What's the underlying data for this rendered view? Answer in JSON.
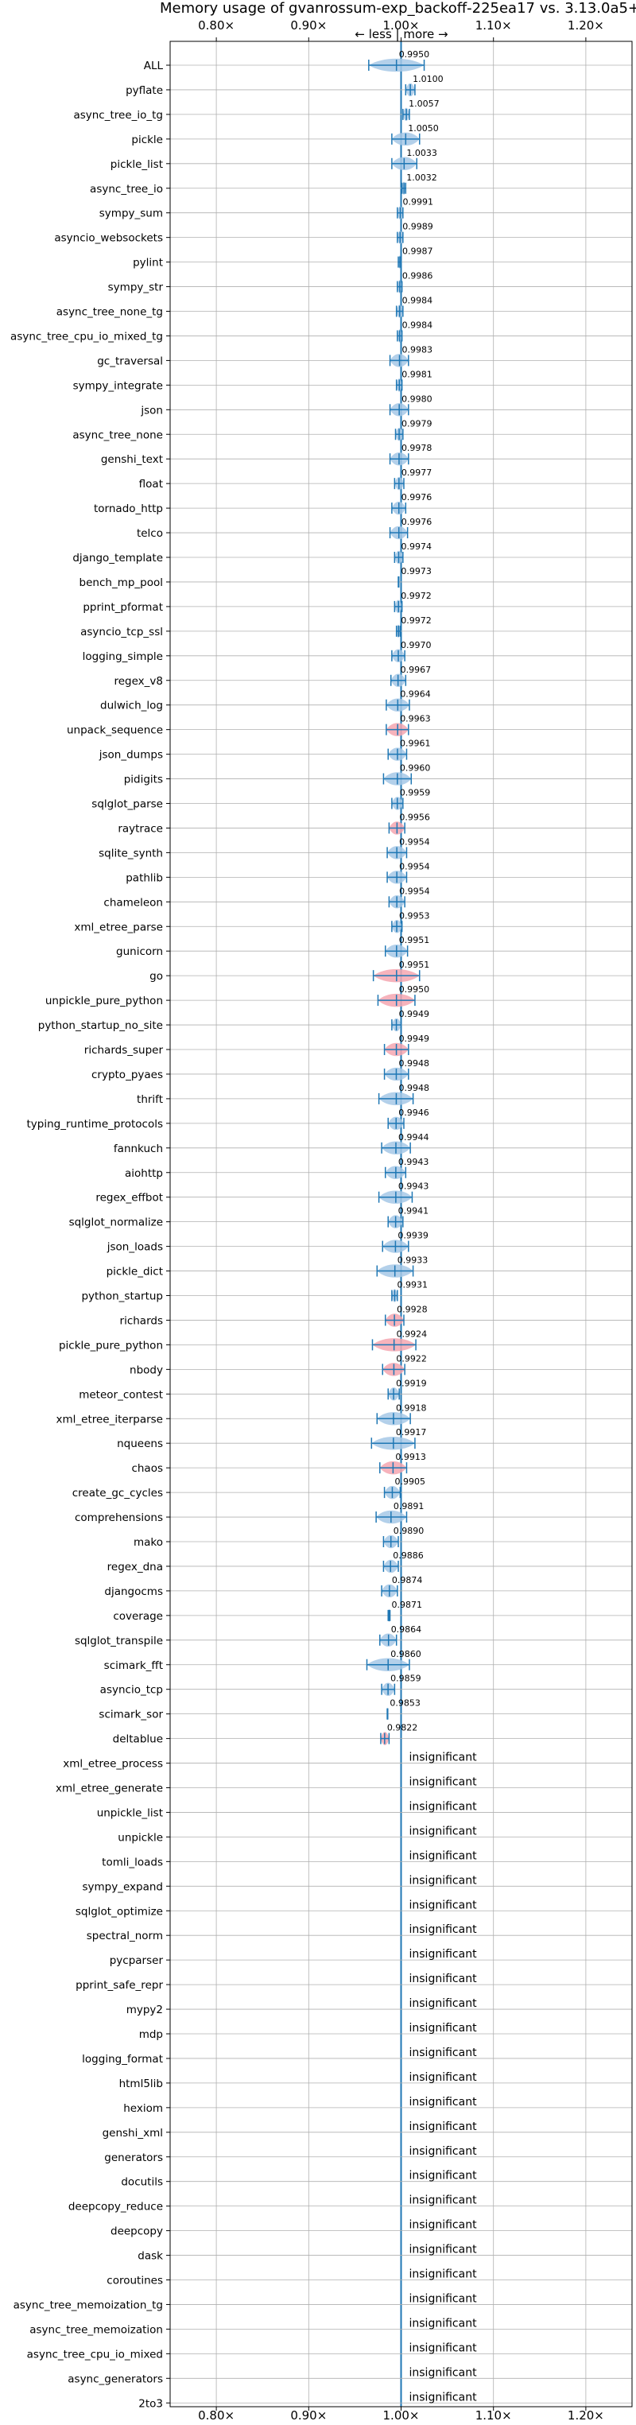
{
  "chart_data": {
    "type": "scatter",
    "title": "Memory usage of gvanrossum-exp_backoff-225ea17 vs. 3.13.0a5+",
    "direction_label": "← less  |  more →",
    "xlim": [
      0.75,
      1.25
    ],
    "xticks": [
      0.8,
      0.9,
      1.0,
      1.1,
      1.2
    ],
    "xtick_labels": [
      "0.80×",
      "0.90×",
      "1.00×",
      "1.10×",
      "1.20×"
    ],
    "reference_x": 1.0,
    "grid": true,
    "colors": {
      "line": "#1f77b4",
      "neutral_fill": "#a6c8e6",
      "worse_fill": "#f4a6b0",
      "grid": "#b0b0b0"
    },
    "insignificant_text": "insignificant",
    "benchmarks": [
      {
        "name": "ALL",
        "value": 0.995,
        "label": "0.9950",
        "low": 0.965,
        "high": 1.025
      },
      {
        "name": "pyflate",
        "value": 1.01,
        "label": "1.0100",
        "low": 1.005,
        "high": 1.015
      },
      {
        "name": "async_tree_io_tg",
        "value": 1.0057,
        "label": "1.0057",
        "low": 1.002,
        "high": 1.009
      },
      {
        "name": "pickle",
        "value": 1.005,
        "label": "1.0050",
        "low": 0.99,
        "high": 1.02
      },
      {
        "name": "pickle_list",
        "value": 1.0033,
        "label": "1.0033",
        "low": 0.99,
        "high": 1.017
      },
      {
        "name": "async_tree_io",
        "value": 1.0032,
        "label": "1.0032",
        "low": 1.001,
        "high": 1.005
      },
      {
        "name": "sympy_sum",
        "value": 0.9991,
        "label": "0.9991",
        "low": 0.996,
        "high": 1.002
      },
      {
        "name": "asyncio_websockets",
        "value": 0.9989,
        "label": "0.9989",
        "low": 0.996,
        "high": 1.002
      },
      {
        "name": "pylint",
        "value": 0.9987,
        "label": "0.9987",
        "low": 0.997,
        "high": 1.0
      },
      {
        "name": "sympy_str",
        "value": 0.9986,
        "label": "0.9986",
        "low": 0.996,
        "high": 1.001
      },
      {
        "name": "async_tree_none_tg",
        "value": 0.9984,
        "label": "0.9984",
        "low": 0.995,
        "high": 1.002
      },
      {
        "name": "async_tree_cpu_io_mixed_tg",
        "value": 0.9984,
        "label": "0.9984",
        "low": 0.996,
        "high": 1.001
      },
      {
        "name": "gc_traversal",
        "value": 0.9983,
        "label": "0.9983",
        "low": 0.988,
        "high": 1.008
      },
      {
        "name": "sympy_integrate",
        "value": 0.9981,
        "label": "0.9981",
        "low": 0.995,
        "high": 1.001
      },
      {
        "name": "json",
        "value": 0.998,
        "label": "0.9980",
        "low": 0.988,
        "high": 1.008
      },
      {
        "name": "async_tree_none",
        "value": 0.9979,
        "label": "0.9979",
        "low": 0.994,
        "high": 1.002
      },
      {
        "name": "genshi_text",
        "value": 0.9978,
        "label": "0.9978",
        "low": 0.988,
        "high": 1.008
      },
      {
        "name": "float",
        "value": 0.9977,
        "label": "0.9977",
        "low": 0.993,
        "high": 1.003
      },
      {
        "name": "tornado_http",
        "value": 0.9976,
        "label": "0.9976",
        "low": 0.99,
        "high": 1.005
      },
      {
        "name": "telco",
        "value": 0.9976,
        "label": "0.9976",
        "low": 0.988,
        "high": 1.007
      },
      {
        "name": "django_template",
        "value": 0.9974,
        "label": "0.9974",
        "low": 0.993,
        "high": 1.002
      },
      {
        "name": "bench_mp_pool",
        "value": 0.9973,
        "label": "0.9973",
        "low": 0.997,
        "high": 0.9976
      },
      {
        "name": "pprint_pformat",
        "value": 0.9972,
        "label": "0.9972",
        "low": 0.993,
        "high": 1.001
      },
      {
        "name": "asyncio_tcp_ssl",
        "value": 0.9972,
        "label": "0.9972",
        "low": 0.995,
        "high": 0.999
      },
      {
        "name": "logging_simple",
        "value": 0.997,
        "label": "0.9970",
        "low": 0.99,
        "high": 1.004
      },
      {
        "name": "regex_v8",
        "value": 0.9967,
        "label": "0.9967",
        "low": 0.989,
        "high": 1.005
      },
      {
        "name": "dulwich_log",
        "value": 0.9964,
        "label": "0.9964",
        "low": 0.984,
        "high": 1.009
      },
      {
        "name": "unpack_sequence",
        "value": 0.9963,
        "label": "0.9963",
        "low": 0.984,
        "high": 1.008,
        "worse": true
      },
      {
        "name": "json_dumps",
        "value": 0.9961,
        "label": "0.9961",
        "low": 0.986,
        "high": 1.006
      },
      {
        "name": "pidigits",
        "value": 0.996,
        "label": "0.9960",
        "low": 0.981,
        "high": 1.011
      },
      {
        "name": "sqlglot_parse",
        "value": 0.9959,
        "label": "0.9959",
        "low": 0.99,
        "high": 1.002
      },
      {
        "name": "raytrace",
        "value": 0.9956,
        "label": "0.9956",
        "low": 0.987,
        "high": 1.004,
        "worse": true
      },
      {
        "name": "sqlite_synth",
        "value": 0.9954,
        "label": "0.9954",
        "low": 0.985,
        "high": 1.006
      },
      {
        "name": "pathlib",
        "value": 0.9954,
        "label": "0.9954",
        "low": 0.985,
        "high": 1.006
      },
      {
        "name": "chameleon",
        "value": 0.9954,
        "label": "0.9954",
        "low": 0.987,
        "high": 1.004
      },
      {
        "name": "xml_etree_parse",
        "value": 0.9953,
        "label": "0.9953",
        "low": 0.99,
        "high": 1.001
      },
      {
        "name": "gunicorn",
        "value": 0.9951,
        "label": "0.9951",
        "low": 0.983,
        "high": 1.007
      },
      {
        "name": "go",
        "value": 0.9951,
        "label": "0.9951",
        "low": 0.97,
        "high": 1.02,
        "worse": true
      },
      {
        "name": "unpickle_pure_python",
        "value": 0.995,
        "label": "0.9950",
        "low": 0.975,
        "high": 1.015,
        "worse": true
      },
      {
        "name": "python_startup_no_site",
        "value": 0.9949,
        "label": "0.9949",
        "low": 0.99,
        "high": 1.0
      },
      {
        "name": "richards_super",
        "value": 0.9949,
        "label": "0.9949",
        "low": 0.982,
        "high": 1.008,
        "worse": true
      },
      {
        "name": "crypto_pyaes",
        "value": 0.9948,
        "label": "0.9948",
        "low": 0.982,
        "high": 1.008
      },
      {
        "name": "thrift",
        "value": 0.9948,
        "label": "0.9948",
        "low": 0.976,
        "high": 1.013
      },
      {
        "name": "typing_runtime_protocols",
        "value": 0.9946,
        "label": "0.9946",
        "low": 0.986,
        "high": 1.003
      },
      {
        "name": "fannkuch",
        "value": 0.9944,
        "label": "0.9944",
        "low": 0.979,
        "high": 1.01
      },
      {
        "name": "aiohttp",
        "value": 0.9943,
        "label": "0.9943",
        "low": 0.983,
        "high": 1.005
      },
      {
        "name": "regex_effbot",
        "value": 0.9943,
        "label": "0.9943",
        "low": 0.976,
        "high": 1.012
      },
      {
        "name": "sqlglot_normalize",
        "value": 0.9941,
        "label": "0.9941",
        "low": 0.986,
        "high": 1.002
      },
      {
        "name": "json_loads",
        "value": 0.9939,
        "label": "0.9939",
        "low": 0.98,
        "high": 1.008
      },
      {
        "name": "pickle_dict",
        "value": 0.9933,
        "label": "0.9933",
        "low": 0.974,
        "high": 1.013
      },
      {
        "name": "python_startup",
        "value": 0.9931,
        "label": "0.9931",
        "low": 0.99,
        "high": 0.996
      },
      {
        "name": "richards",
        "value": 0.9928,
        "label": "0.9928",
        "low": 0.983,
        "high": 1.003,
        "worse": true
      },
      {
        "name": "pickle_pure_python",
        "value": 0.9924,
        "label": "0.9924",
        "low": 0.969,
        "high": 1.016,
        "worse": true
      },
      {
        "name": "nbody",
        "value": 0.9922,
        "label": "0.9922",
        "low": 0.98,
        "high": 1.004,
        "worse": true
      },
      {
        "name": "meteor_contest",
        "value": 0.9919,
        "label": "0.9919",
        "low": 0.986,
        "high": 0.998
      },
      {
        "name": "xml_etree_iterparse",
        "value": 0.9918,
        "label": "0.9918",
        "low": 0.974,
        "high": 1.01
      },
      {
        "name": "nqueens",
        "value": 0.9917,
        "label": "0.9917",
        "low": 0.968,
        "high": 1.015
      },
      {
        "name": "chaos",
        "value": 0.9913,
        "label": "0.9913",
        "low": 0.977,
        "high": 1.006,
        "worse": true
      },
      {
        "name": "create_gc_cycles",
        "value": 0.9905,
        "label": "0.9905",
        "low": 0.982,
        "high": 0.999
      },
      {
        "name": "comprehensions",
        "value": 0.9891,
        "label": "0.9891",
        "low": 0.973,
        "high": 1.006
      },
      {
        "name": "mako",
        "value": 0.989,
        "label": "0.9890",
        "low": 0.981,
        "high": 0.997
      },
      {
        "name": "regex_dna",
        "value": 0.9886,
        "label": "0.9886",
        "low": 0.981,
        "high": 0.997
      },
      {
        "name": "djangocms",
        "value": 0.9874,
        "label": "0.9874",
        "low": 0.979,
        "high": 0.996
      },
      {
        "name": "coverage",
        "value": 0.9871,
        "label": "0.9871",
        "low": 0.986,
        "high": 0.988
      },
      {
        "name": "sqlglot_transpile",
        "value": 0.9864,
        "label": "0.9864",
        "low": 0.977,
        "high": 0.995
      },
      {
        "name": "scimark_fft",
        "value": 0.986,
        "label": "0.9860",
        "low": 0.963,
        "high": 1.009
      },
      {
        "name": "asyncio_tcp",
        "value": 0.9859,
        "label": "0.9859",
        "low": 0.979,
        "high": 0.993
      },
      {
        "name": "scimark_sor",
        "value": 0.9853,
        "label": "0.9853",
        "low": 0.985,
        "high": 0.9856
      },
      {
        "name": "deltablue",
        "value": 0.9822,
        "label": "0.9822",
        "low": 0.978,
        "high": 0.987,
        "worse": true
      },
      {
        "name": "xml_etree_process",
        "insignificant": true
      },
      {
        "name": "xml_etree_generate",
        "insignificant": true
      },
      {
        "name": "unpickle_list",
        "insignificant": true
      },
      {
        "name": "unpickle",
        "insignificant": true
      },
      {
        "name": "tomli_loads",
        "insignificant": true
      },
      {
        "name": "sympy_expand",
        "insignificant": true
      },
      {
        "name": "sqlglot_optimize",
        "insignificant": true
      },
      {
        "name": "spectral_norm",
        "insignificant": true
      },
      {
        "name": "pycparser",
        "insignificant": true
      },
      {
        "name": "pprint_safe_repr",
        "insignificant": true
      },
      {
        "name": "mypy2",
        "insignificant": true
      },
      {
        "name": "mdp",
        "insignificant": true
      },
      {
        "name": "logging_format",
        "insignificant": true
      },
      {
        "name": "html5lib",
        "insignificant": true
      },
      {
        "name": "hexiom",
        "insignificant": true
      },
      {
        "name": "genshi_xml",
        "insignificant": true
      },
      {
        "name": "generators",
        "insignificant": true
      },
      {
        "name": "docutils",
        "insignificant": true
      },
      {
        "name": "deepcopy_reduce",
        "insignificant": true
      },
      {
        "name": "deepcopy",
        "insignificant": true
      },
      {
        "name": "dask",
        "insignificant": true
      },
      {
        "name": "coroutines",
        "insignificant": true
      },
      {
        "name": "async_tree_memoization_tg",
        "insignificant": true
      },
      {
        "name": "async_tree_memoization",
        "insignificant": true
      },
      {
        "name": "async_tree_cpu_io_mixed",
        "insignificant": true
      },
      {
        "name": "async_generators",
        "insignificant": true
      },
      {
        "name": "2to3",
        "insignificant": true
      }
    ]
  }
}
